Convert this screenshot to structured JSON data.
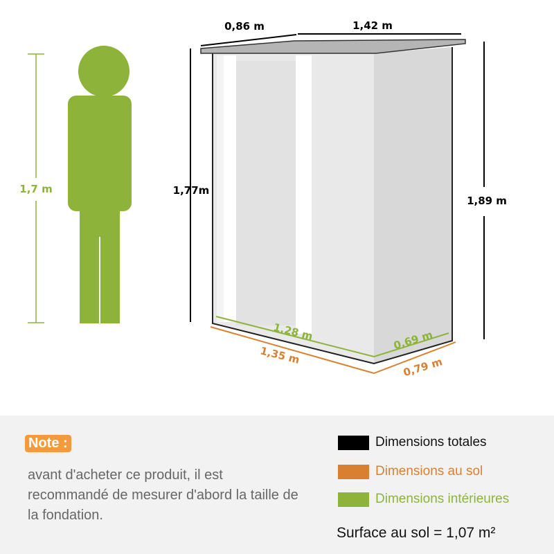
{
  "colors": {
    "total": "#000000",
    "ground": "#d98030",
    "interior": "#8db33a",
    "note": "#f39a3c"
  },
  "person": {
    "height_label": "1,7 m"
  },
  "shed": {
    "roof_depth": "0,86 m",
    "roof_width": "1,42 m",
    "front_height": "1,77m",
    "back_height": "1,89 m",
    "interior_width": "1,28 m",
    "interior_depth": "0,69 m",
    "ground_width": "1,35 m",
    "ground_depth": "0,79 m"
  },
  "note": {
    "badge": "Note :",
    "text": "avant d'acheter ce produit, il est recommandé de mesurer d'abord la taille de la fondation."
  },
  "legend": [
    {
      "label": "Dimensions totales",
      "color": "#000000"
    },
    {
      "label": "Dimensions au sol",
      "color": "#d98030"
    },
    {
      "label": "Dimensions intérieures",
      "color": "#8db33a"
    }
  ],
  "surface": "Surface au sol  = 1,07 m²"
}
